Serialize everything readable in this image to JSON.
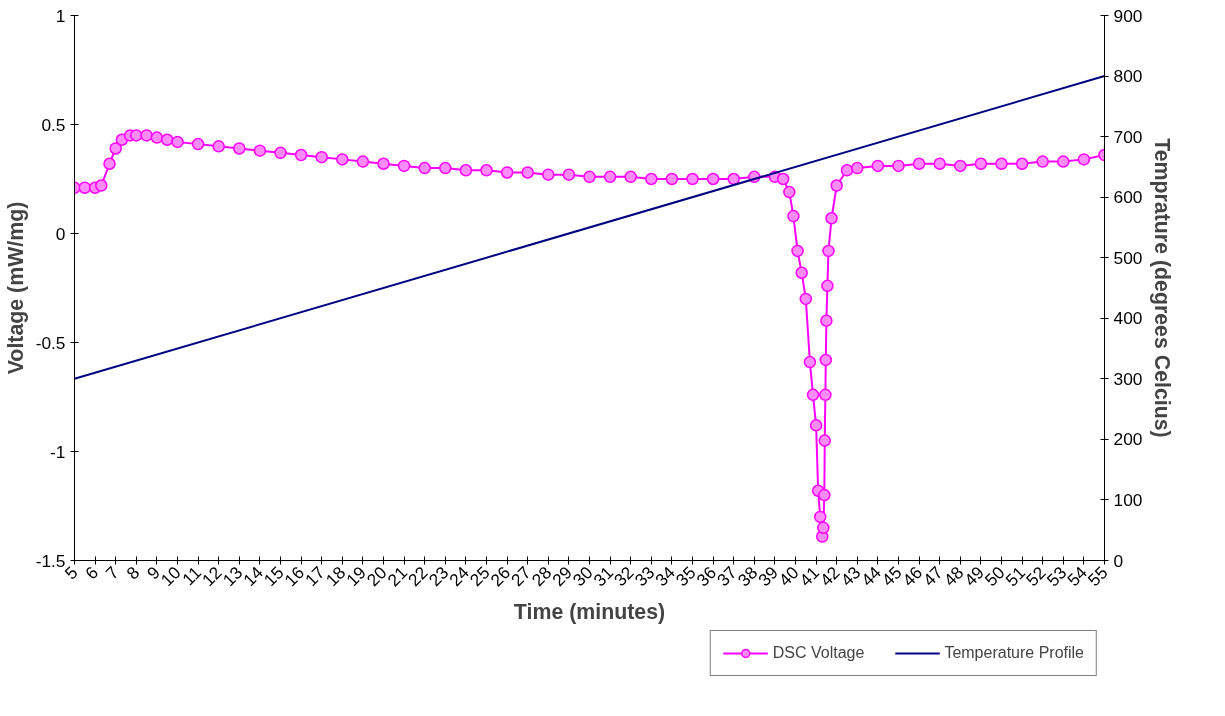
{
  "chart_data": {
    "type": "line",
    "xlabel": "Time (minutes)",
    "ylabel": "Voltage (mW/mg)",
    "y2label": "Temprature (degrees Celcius)",
    "xlim": [
      5,
      55
    ],
    "xticks": [
      5,
      6,
      7,
      8,
      9,
      10,
      11,
      12,
      13,
      14,
      15,
      16,
      17,
      18,
      19,
      20,
      21,
      22,
      23,
      24,
      25,
      26,
      27,
      28,
      29,
      30,
      31,
      32,
      33,
      34,
      35,
      36,
      37,
      38,
      39,
      40,
      41,
      42,
      43,
      44,
      45,
      46,
      47,
      48,
      49,
      50,
      51,
      52,
      53,
      54,
      55
    ],
    "ylim": [
      -1.5,
      1
    ],
    "yticks": [
      -1.5,
      -1,
      -0.5,
      0,
      0.5,
      1
    ],
    "y2lim": [
      0,
      900
    ],
    "y2ticks": [
      0,
      100,
      200,
      300,
      400,
      500,
      600,
      700,
      800,
      900
    ],
    "grid": false,
    "legend": "bottom right",
    "series": [
      {
        "name": "DSC Voltage",
        "color": "#ff00ff",
        "marker": "circle",
        "x": [
          5,
          5.5,
          6,
          6.3,
          6.7,
          7,
          7.3,
          7.7,
          8,
          8.5,
          9,
          9.5,
          10,
          11,
          12,
          13,
          14,
          15,
          16,
          17,
          18,
          19,
          20,
          21,
          22,
          23,
          24,
          25,
          26,
          27,
          28,
          29,
          30,
          31,
          32,
          33,
          34,
          35,
          36,
          37,
          38,
          39,
          39.4,
          39.7,
          39.9,
          40.1,
          40.3,
          40.5,
          40.7,
          40.85,
          41,
          41.1,
          41.2,
          41.3,
          41.35,
          41.4,
          41.42,
          41.45,
          41.47,
          41.5,
          41.55,
          41.6,
          41.75,
          42,
          42.5,
          43,
          44,
          45,
          46,
          47,
          48,
          49,
          50,
          51,
          52,
          53,
          54,
          55
        ],
        "values": [
          0.21,
          0.21,
          0.21,
          0.22,
          0.32,
          0.39,
          0.43,
          0.45,
          0.45,
          0.45,
          0.44,
          0.43,
          0.42,
          0.41,
          0.4,
          0.39,
          0.38,
          0.37,
          0.36,
          0.35,
          0.34,
          0.33,
          0.32,
          0.31,
          0.3,
          0.3,
          0.29,
          0.29,
          0.28,
          0.28,
          0.27,
          0.27,
          0.26,
          0.26,
          0.26,
          0.25,
          0.25,
          0.25,
          0.25,
          0.25,
          0.26,
          0.26,
          0.25,
          0.19,
          0.08,
          -0.08,
          -0.18,
          -0.3,
          -0.59,
          -0.74,
          -0.88,
          -1.18,
          -1.3,
          -1.39,
          -1.35,
          -1.2,
          -0.95,
          -0.74,
          -0.58,
          -0.4,
          -0.24,
          -0.08,
          0.07,
          0.22,
          0.29,
          0.3,
          0.31,
          0.31,
          0.32,
          0.32,
          0.31,
          0.32,
          0.32,
          0.32,
          0.33,
          0.33,
          0.34,
          0.36
        ]
      },
      {
        "name": "Temperature Profile",
        "color": "#000080",
        "marker": "none",
        "axis": "y2",
        "x": [
          5,
          55
        ],
        "values": [
          300,
          800
        ]
      }
    ]
  }
}
